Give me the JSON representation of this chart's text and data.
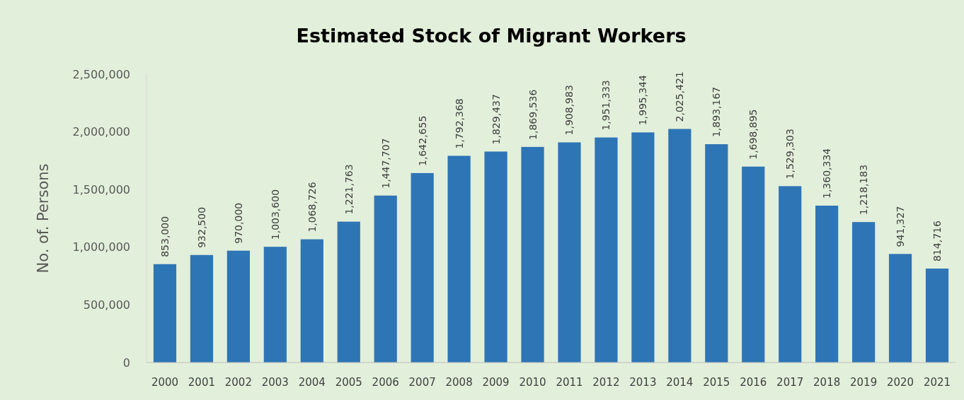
{
  "chart_data": {
    "type": "bar",
    "title": "Estimated Stock of Migrant Workers",
    "ylabel": "No. of. Persons",
    "categories": [
      "2000",
      "2001",
      "2002",
      "2003",
      "2004",
      "2005",
      "2006",
      "2007",
      "2008",
      "2009",
      "2010",
      "2011",
      "2012",
      "2013",
      "2014",
      "2015",
      "2016",
      "2017",
      "2018",
      "2019",
      "2020",
      "2021"
    ],
    "values": [
      853000,
      932500,
      970000,
      1003600,
      1068726,
      1221763,
      1447707,
      1642655,
      1792368,
      1829437,
      1869536,
      1908983,
      1951333,
      1995344,
      2025421,
      1893167,
      1698895,
      1529303,
      1360334,
      1218183,
      941327,
      814716
    ],
    "value_labels": [
      "853,000",
      "932,500",
      "970,000",
      "1,003,600",
      "1,068,726",
      "1,221,763",
      "1,447,707",
      "1,642,655",
      "1,792,368",
      "1,829,437",
      "1,869,536",
      "1,908,983",
      "1,951,333",
      "1,995,344",
      "2,025,421",
      "1,893,167",
      "1,698,895",
      "1,529,303",
      "1,360,334",
      "1,218,183",
      "941,327",
      "814,716"
    ],
    "color": "#2e75b6",
    "ylim": [
      0,
      2500000
    ],
    "yticks": [
      {
        "value": 0,
        "label": "0"
      },
      {
        "value": 500000,
        "label": "500,000"
      },
      {
        "value": 1000000,
        "label": "1,000,000"
      },
      {
        "value": 1500000,
        "label": "1,500,000"
      },
      {
        "value": 2000000,
        "label": "2,000,000"
      },
      {
        "value": 2500000,
        "label": "2,500,000"
      }
    ],
    "grid": false
  }
}
